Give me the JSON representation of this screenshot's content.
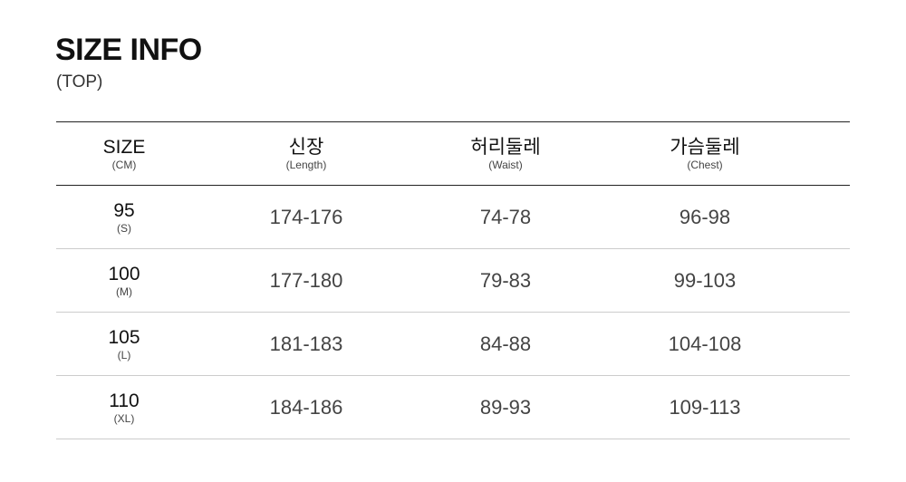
{
  "title": "SIZE INFO",
  "subtitle": "(TOP)",
  "headers": [
    {
      "label": "SIZE",
      "sub": "(CM)"
    },
    {
      "label": "신장",
      "sub": "(Length)"
    },
    {
      "label": "허리둘레",
      "sub": "(Waist)"
    },
    {
      "label": "가슴둘레",
      "sub": "(Chest)"
    }
  ],
  "rows": [
    {
      "size": "95",
      "code": "(S)",
      "length": "174-176",
      "waist": "74-78",
      "chest": "96-98"
    },
    {
      "size": "100",
      "code": "(M)",
      "length": "177-180",
      "waist": "79-83",
      "chest": "99-103"
    },
    {
      "size": "105",
      "code": "(L)",
      "length": "181-183",
      "waist": "84-88",
      "chest": "104-108"
    },
    {
      "size": "110",
      "code": "(XL)",
      "length": "184-186",
      "waist": "89-93",
      "chest": "109-113"
    }
  ]
}
